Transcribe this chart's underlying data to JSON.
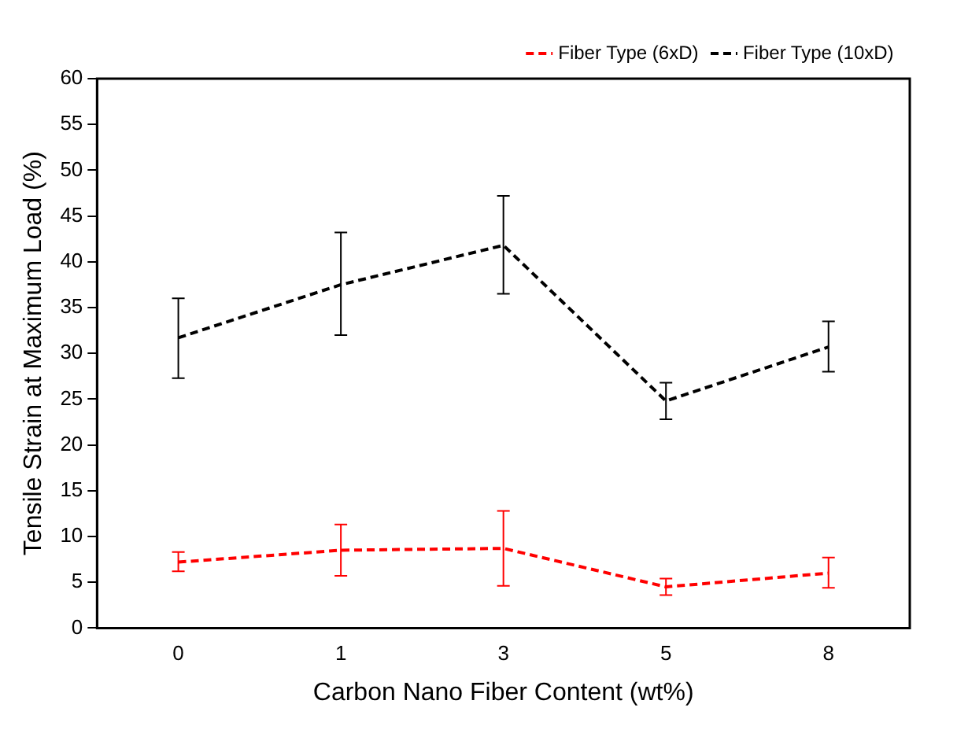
{
  "chart_data": {
    "type": "line",
    "xlabel": "Carbon Nano Fiber Content (wt%)",
    "ylabel": "Tensile Strain at Maximum Load (%)",
    "categories": [
      "0",
      "1",
      "3",
      "5",
      "8"
    ],
    "series": [
      {
        "name": "Fiber Type (6xD)",
        "color": "#ff0000",
        "values": [
          7.2,
          8.5,
          8.7,
          4.5,
          6.0
        ],
        "errors": [
          [
            6.2,
            8.3
          ],
          [
            5.7,
            11.3
          ],
          [
            4.6,
            12.8
          ],
          [
            3.6,
            5.4
          ],
          [
            4.4,
            7.7
          ]
        ]
      },
      {
        "name": "Fiber Type (10xD)",
        "color": "#000000",
        "values": [
          31.7,
          37.5,
          41.8,
          24.8,
          30.7
        ],
        "errors": [
          [
            27.3,
            36
          ],
          [
            32,
            43.2
          ],
          [
            36.5,
            47.2
          ],
          [
            22.8,
            26.8
          ],
          [
            28,
            33.5
          ]
        ]
      }
    ],
    "ylim": [
      0,
      60
    ],
    "yticks": [
      0,
      5,
      10,
      15,
      20,
      25,
      30,
      35,
      40,
      45,
      50,
      55,
      60
    ],
    "legend": "top right",
    "marker": "none",
    "line_style": "dashed",
    "grid": false
  }
}
